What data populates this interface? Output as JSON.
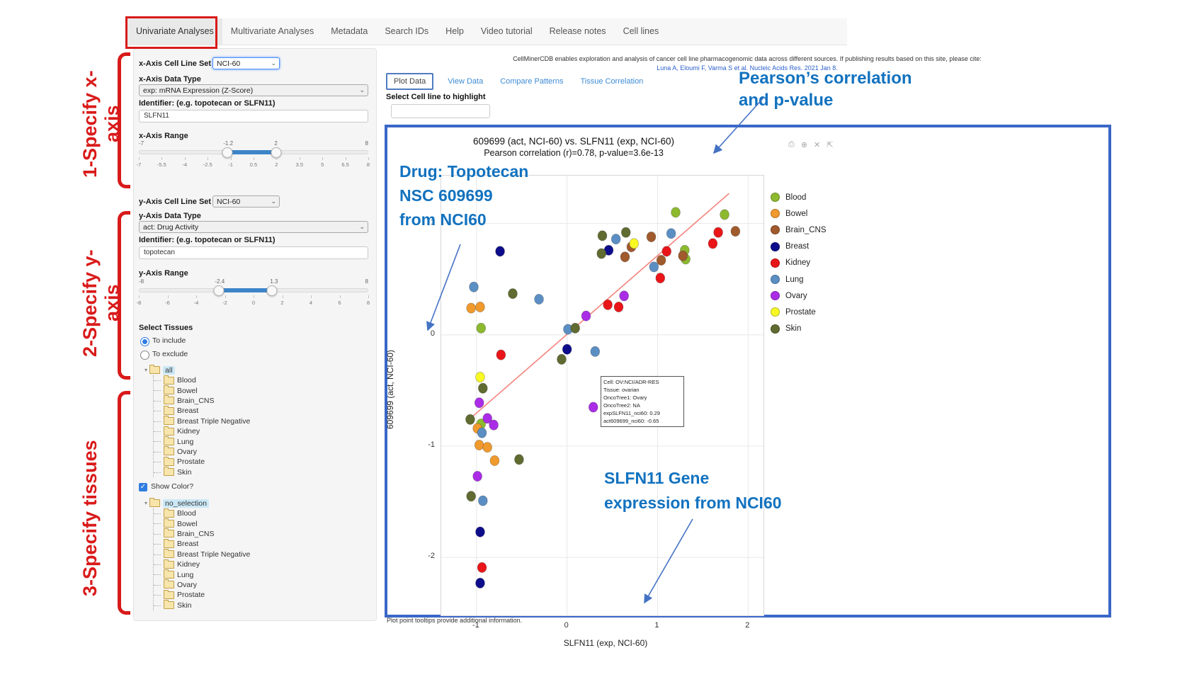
{
  "nav": {
    "tabs": [
      "Univariate Analyses",
      "Multivariate Analyses",
      "Metadata",
      "Search IDs",
      "Help",
      "Video tutorial",
      "Release notes",
      "Cell lines"
    ],
    "active": "Univariate Analyses"
  },
  "red_annotations": {
    "step1": "1-Specify x-axis",
    "step2": "2-Specify y-axis",
    "step3": "3-Specify tissues",
    "color": "#d91a1a"
  },
  "blue_annotations": {
    "pearson": [
      "Pearson’s correlation",
      "and p-value"
    ],
    "drug": [
      "Drug: Topotecan",
      "NSC 609699",
      "from NCI60"
    ],
    "gene": [
      "SLFN11 Gene",
      "expression from NCI60"
    ],
    "color": "#1272bf"
  },
  "icons": {
    "select_caret": "⌄",
    "check": "✓",
    "tree_caret": "▾",
    "modebar": [
      {
        "name": "camera-icon",
        "glyph": "⎙"
      },
      {
        "name": "zoom-in-icon",
        "glyph": "⊕"
      },
      {
        "name": "close-icon",
        "glyph": "✕"
      },
      {
        "name": "expand-icon",
        "glyph": "⇱"
      }
    ]
  },
  "sidebar": {
    "x_axis": {
      "cell_line_set_label": "x-Axis Cell Line Set",
      "cell_line_set_value": "NCI-60",
      "data_type_label": "x-Axis Data Type",
      "data_type_value": "exp: mRNA Expression (Z-Score)",
      "identifier_label": "Identifier: (e.g. topotecan or SLFN11)",
      "identifier_value": "SLFN11",
      "range_label": "x-Axis Range",
      "range": {
        "min": -7,
        "max": 8,
        "low": -1.2,
        "high": 2,
        "ticks": [
          -7,
          -5.5,
          -4,
          -2.5,
          -1,
          0.5,
          2,
          3.5,
          5,
          6.5,
          8
        ]
      }
    },
    "y_axis": {
      "cell_line_set_label": "y-Axis Cell Line Set",
      "cell_line_set_value": "NCI-60",
      "data_type_label": "y-Axis Data Type",
      "data_type_value": "act: Drug Activity",
      "identifier_label": "Identifier: (e.g. topotecan or SLFN11)",
      "identifier_value": "topotecan",
      "range_label": "y-Axis Range",
      "range": {
        "min": -8,
        "max": 8,
        "low": -2.4,
        "high": 1.3,
        "ticks": [
          -8,
          -6,
          -4,
          -2,
          0,
          2,
          4,
          6,
          8
        ]
      }
    },
    "tissues": {
      "label": "Select Tissues",
      "radio_include": "To include",
      "radio_exclude": "To exclude",
      "include_selected": true,
      "show_color_label": "Show Color?",
      "show_color_checked": true,
      "tree1_root": "all",
      "tree2_root": "no_selection",
      "tree_items": [
        "Blood",
        "Bowel",
        "Brain_CNS",
        "Breast",
        "Breast Triple Negative",
        "Kidney",
        "Lung",
        "Ovary",
        "Prostate",
        "Skin"
      ]
    }
  },
  "main": {
    "intro": "CellMinerCDB enables exploration and analysis of cancer cell line pharmacogenomic data across different sources. If publishing results based on this site, please cite:",
    "citation": "Luna A, Eloumi F, Varma S et al. Nucleic Acids Res. 2021 Jan 8.",
    "tabs": [
      "Plot Data",
      "View Data",
      "Compare Patterns",
      "Tissue Correlation"
    ],
    "active_tab": "Plot Data",
    "highlight_label": "Select Cell line to highlight",
    "highlight_value": "",
    "footer_note": "Plot point tooltips provide additional information."
  },
  "chart_data": {
    "type": "scatter",
    "title": "609699 (act, NCI-60) vs. SLFN11 (exp, NCI-60)",
    "subtitle": "Pearson correlation (r)=0.78, p-value=3.6e-13",
    "xlabel": "SLFN11 (exp, NCI-60)",
    "ylabel": "609699 (act, NCI-60)",
    "xlim": [
      -1.39,
      2.17
    ],
    "ylim": [
      -2.52,
      1.43
    ],
    "xticks": [
      -1,
      0,
      1,
      2
    ],
    "yticks": [
      -2,
      -1,
      0,
      1
    ],
    "grid": true,
    "legend_position": "right",
    "regression_line": {
      "x1": -1.11,
      "y1": -0.78,
      "x2": 1.79,
      "y2": 1.27,
      "color": "#f4837d"
    },
    "tissue_colors": {
      "Blood": "#8db92e",
      "Bowel": "#f0992c",
      "Brain_CNS": "#a05a2c",
      "Breast": "#0d0d8c",
      "Kidney": "#ea1518",
      "Lung": "#5b8fc4",
      "Ovary": "#aa2ce6",
      "Prostate": "#f8f823",
      "Skin": "#5f6b30"
    },
    "points": [
      {
        "x": 1.2,
        "y": 1.1,
        "t": "Blood"
      },
      {
        "x": 1.74,
        "y": 1.08,
        "t": "Blood"
      },
      {
        "x": 1.3,
        "y": 0.76,
        "t": "Blood"
      },
      {
        "x": 1.31,
        "y": 0.68,
        "t": "Blood"
      },
      {
        "x": -0.95,
        "y": 0.06,
        "t": "Blood"
      },
      {
        "x": -0.95,
        "y": -0.8,
        "t": "Blood"
      },
      {
        "x": -1.06,
        "y": 0.24,
        "t": "Bowel"
      },
      {
        "x": -0.96,
        "y": 0.25,
        "t": "Bowel"
      },
      {
        "x": -0.99,
        "y": -0.84,
        "t": "Bowel"
      },
      {
        "x": -0.97,
        "y": -0.99,
        "t": "Bowel"
      },
      {
        "x": -0.88,
        "y": -1.01,
        "t": "Bowel"
      },
      {
        "x": -0.8,
        "y": -1.13,
        "t": "Bowel"
      },
      {
        "x": 0.71,
        "y": 0.79,
        "t": "Brain_CNS"
      },
      {
        "x": 0.93,
        "y": 0.88,
        "t": "Brain_CNS"
      },
      {
        "x": 0.64,
        "y": 0.7,
        "t": "Brain_CNS"
      },
      {
        "x": 1.86,
        "y": 0.93,
        "t": "Brain_CNS"
      },
      {
        "x": 1.28,
        "y": 0.71,
        "t": "Brain_CNS"
      },
      {
        "x": 1.04,
        "y": 0.67,
        "t": "Brain_CNS"
      },
      {
        "x": 0.46,
        "y": 0.76,
        "t": "Breast"
      },
      {
        "x": -0.74,
        "y": 0.75,
        "t": "Breast"
      },
      {
        "x": 0.0,
        "y": -0.13,
        "t": "Breast"
      },
      {
        "x": -0.96,
        "y": -1.77,
        "t": "Breast"
      },
      {
        "x": -0.96,
        "y": -2.23,
        "t": "Breast"
      },
      {
        "x": 1.1,
        "y": 0.75,
        "t": "Kidney"
      },
      {
        "x": 1.61,
        "y": 0.82,
        "t": "Kidney"
      },
      {
        "x": 1.67,
        "y": 0.92,
        "t": "Kidney"
      },
      {
        "x": 1.03,
        "y": 0.51,
        "t": "Kidney"
      },
      {
        "x": 0.45,
        "y": 0.27,
        "t": "Kidney"
      },
      {
        "x": 0.57,
        "y": 0.25,
        "t": "Kidney"
      },
      {
        "x": -0.73,
        "y": -0.18,
        "t": "Kidney"
      },
      {
        "x": -0.94,
        "y": -2.09,
        "t": "Kidney"
      },
      {
        "x": 0.54,
        "y": 0.86,
        "t": "Lung"
      },
      {
        "x": 1.15,
        "y": 0.91,
        "t": "Lung"
      },
      {
        "x": 0.96,
        "y": 0.61,
        "t": "Lung"
      },
      {
        "x": -1.03,
        "y": 0.43,
        "t": "Lung"
      },
      {
        "x": -0.31,
        "y": 0.32,
        "t": "Lung"
      },
      {
        "x": 0.01,
        "y": 0.05,
        "t": "Lung"
      },
      {
        "x": 0.31,
        "y": -0.15,
        "t": "Lung"
      },
      {
        "x": -0.94,
        "y": -0.88,
        "t": "Lung"
      },
      {
        "x": -0.93,
        "y": -1.49,
        "t": "Lung"
      },
      {
        "x": 0.63,
        "y": 0.35,
        "t": "Ovary"
      },
      {
        "x": 0.21,
        "y": 0.17,
        "t": "Ovary"
      },
      {
        "x": 0.29,
        "y": -0.65,
        "t": "Ovary",
        "highlight": true
      },
      {
        "x": -0.97,
        "y": -0.61,
        "t": "Ovary"
      },
      {
        "x": -0.88,
        "y": -0.75,
        "t": "Ovary"
      },
      {
        "x": -0.81,
        "y": -0.81,
        "t": "Ovary"
      },
      {
        "x": -0.99,
        "y": -1.27,
        "t": "Ovary"
      },
      {
        "x": 0.74,
        "y": 0.82,
        "t": "Prostate"
      },
      {
        "x": -0.96,
        "y": -0.38,
        "t": "Prostate"
      },
      {
        "x": 0.39,
        "y": 0.89,
        "t": "Skin"
      },
      {
        "x": 0.65,
        "y": 0.92,
        "t": "Skin"
      },
      {
        "x": 0.38,
        "y": 0.73,
        "t": "Skin"
      },
      {
        "x": -0.6,
        "y": 0.37,
        "t": "Skin"
      },
      {
        "x": 0.09,
        "y": 0.06,
        "t": "Skin"
      },
      {
        "x": -0.06,
        "y": -0.22,
        "t": "Skin"
      },
      {
        "x": -0.93,
        "y": -0.48,
        "t": "Skin"
      },
      {
        "x": -1.07,
        "y": -0.76,
        "t": "Skin"
      },
      {
        "x": -0.53,
        "y": -1.12,
        "t": "Skin"
      },
      {
        "x": -1.06,
        "y": -1.45,
        "t": "Skin"
      }
    ],
    "tooltip": {
      "lines": [
        "Cell: OV:NCI/ADR-RES",
        "Tissue: ovarian",
        "OncoTree1: Ovary",
        "OncoTree2: NA",
        "expSLFN11_nci60: 0.29",
        "act609699_nci60: -0.65"
      ]
    }
  }
}
